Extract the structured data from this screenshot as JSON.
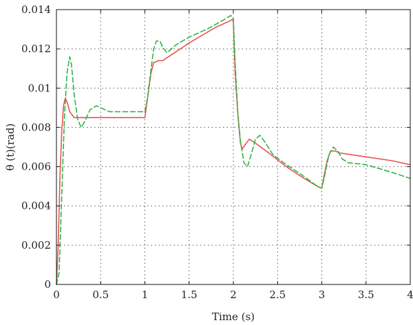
{
  "chart_data": {
    "type": "line",
    "title": "",
    "xlabel": "Time (s)",
    "ylabel": "θ (t)(rad)",
    "xlim": [
      0,
      4
    ],
    "ylim": [
      0,
      0.014
    ],
    "xticks": [
      0,
      0.5,
      1,
      1.5,
      2,
      2.5,
      3,
      3.5,
      4
    ],
    "xtick_labels": [
      "0",
      "0.5",
      "1",
      "1.5",
      "2",
      "2.5",
      "3",
      "3.5",
      "4"
    ],
    "yticks": [
      0,
      0.002,
      0.004,
      0.006,
      0.008,
      0.01,
      0.012,
      0.014
    ],
    "ytick_labels": [
      "0",
      "0.002",
      "0.004",
      "0.006",
      "0.008",
      "0.01",
      "0.012",
      "0.014"
    ],
    "grid": true,
    "legend": false,
    "series": [
      {
        "color": "#e8554e",
        "dash": "solid",
        "x": [
          0,
          0.02,
          0.04,
          0.06,
          0.08,
          0.1,
          0.12,
          0.15,
          0.2,
          0.3,
          0.5,
          0.8,
          1.0,
          1.03,
          1.07,
          1.1,
          1.15,
          1.2,
          1.3,
          1.5,
          1.8,
          1.95,
          1.99,
          2.0,
          2.02,
          2.05,
          2.08,
          2.1,
          2.13,
          2.18,
          2.25,
          2.4,
          2.6,
          2.8,
          2.95,
          3.0,
          3.02,
          3.06,
          3.1,
          3.15,
          3.2,
          3.5,
          3.8,
          4.0
        ],
        "y": [
          0,
          0.002,
          0.0055,
          0.0078,
          0.0091,
          0.0095,
          0.0093,
          0.0088,
          0.0085,
          0.0085,
          0.0085,
          0.0085,
          0.0085,
          0.0095,
          0.0108,
          0.0113,
          0.0114,
          0.0114,
          0.0117,
          0.0123,
          0.0131,
          0.0134,
          0.0135,
          0.0134,
          0.0108,
          0.0087,
          0.0072,
          0.0069,
          0.0071,
          0.0074,
          0.0072,
          0.0067,
          0.006,
          0.0054,
          0.005,
          0.0049,
          0.0054,
          0.0063,
          0.0068,
          0.0068,
          0.0067,
          0.0065,
          0.0063,
          0.0061
        ]
      },
      {
        "color": "#2fb34a",
        "dash": "dashed",
        "x": [
          0,
          0.03,
          0.06,
          0.09,
          0.12,
          0.15,
          0.17,
          0.2,
          0.24,
          0.28,
          0.32,
          0.38,
          0.45,
          0.5,
          0.6,
          0.8,
          1.0,
          1.03,
          1.07,
          1.1,
          1.13,
          1.17,
          1.2,
          1.25,
          1.3,
          1.35,
          1.5,
          1.7,
          1.9,
          1.97,
          2.0,
          2.02,
          2.05,
          2.08,
          2.12,
          2.16,
          2.2,
          2.25,
          2.3,
          2.35,
          2.45,
          2.6,
          2.8,
          2.95,
          3.0,
          3.04,
          3.08,
          3.13,
          3.18,
          3.23,
          3.3,
          3.5,
          3.8,
          4.0
        ],
        "y": [
          0,
          0.0006,
          0.0045,
          0.0085,
          0.0108,
          0.0116,
          0.0112,
          0.0097,
          0.0084,
          0.008,
          0.0083,
          0.0089,
          0.0091,
          0.009,
          0.0088,
          0.0088,
          0.0088,
          0.0095,
          0.011,
          0.012,
          0.0124,
          0.0124,
          0.0121,
          0.0118,
          0.012,
          0.0122,
          0.0126,
          0.013,
          0.0135,
          0.0137,
          0.0136,
          0.0113,
          0.0088,
          0.0073,
          0.0062,
          0.006,
          0.0066,
          0.0074,
          0.0076,
          0.0073,
          0.0066,
          0.0061,
          0.0055,
          0.005,
          0.0049,
          0.0057,
          0.0066,
          0.007,
          0.0068,
          0.0064,
          0.0062,
          0.0061,
          0.0057,
          0.0054
        ]
      }
    ]
  }
}
